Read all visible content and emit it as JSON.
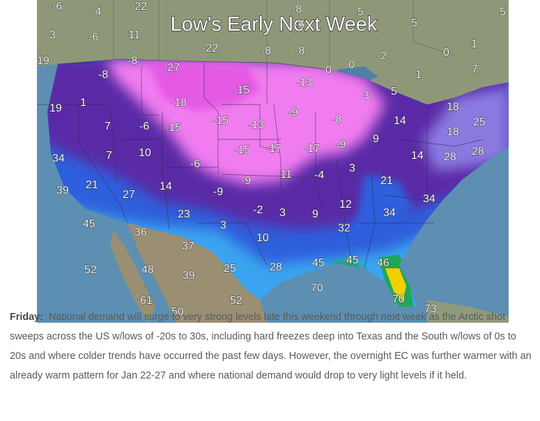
{
  "map": {
    "title": "Low's Early Next Week",
    "labels": [
      {
        "t": "-6"
      },
      {
        "t": "-4"
      },
      {
        "t": "-22"
      },
      {
        "t": "-8"
      },
      {
        "t": "5"
      },
      {
        "t": "5"
      },
      {
        "t": "3"
      },
      {
        "t": "-6"
      },
      {
        "t": "-11"
      },
      {
        "t": "-6"
      },
      {
        "t": "5"
      },
      {
        "t": "19"
      },
      {
        "t": "-8"
      },
      {
        "t": "-22"
      },
      {
        "t": "-8"
      },
      {
        "t": "-8"
      },
      {
        "t": "-2"
      },
      {
        "t": "0"
      },
      {
        "t": "1"
      },
      {
        "t": "-27"
      },
      {
        "t": "0"
      },
      {
        "t": "0"
      },
      {
        "t": "1"
      },
      {
        "t": "7"
      },
      {
        "t": "-8"
      },
      {
        "t": "-13"
      },
      {
        "t": "-15"
      },
      {
        "t": "5"
      },
      {
        "t": "19"
      },
      {
        "t": "1"
      },
      {
        "t": "-18"
      },
      {
        "t": "3"
      },
      {
        "t": "18"
      },
      {
        "t": "-9"
      },
      {
        "t": "-8"
      },
      {
        "t": "14"
      },
      {
        "t": "25"
      },
      {
        "t": "7"
      },
      {
        "t": "-6"
      },
      {
        "t": "-15"
      },
      {
        "t": "-15"
      },
      {
        "t": "-13"
      },
      {
        "t": "18"
      },
      {
        "t": "9"
      },
      {
        "t": "-9"
      },
      {
        "t": "-17"
      },
      {
        "t": "-17"
      },
      {
        "t": "-15"
      },
      {
        "t": "34"
      },
      {
        "t": "7"
      },
      {
        "t": "10"
      },
      {
        "t": "14"
      },
      {
        "t": "28"
      },
      {
        "t": "28"
      },
      {
        "t": "-6"
      },
      {
        "t": "3"
      },
      {
        "t": "-11"
      },
      {
        "t": "-4"
      },
      {
        "t": "-9"
      },
      {
        "t": "21"
      },
      {
        "t": "21"
      },
      {
        "t": "14"
      },
      {
        "t": "-9"
      },
      {
        "t": "39"
      },
      {
        "t": "27"
      },
      {
        "t": "34"
      },
      {
        "t": "12"
      },
      {
        "t": "23"
      },
      {
        "t": "-2"
      },
      {
        "t": "3"
      },
      {
        "t": "9"
      },
      {
        "t": "34"
      },
      {
        "t": "45"
      },
      {
        "t": "3"
      },
      {
        "t": "36"
      },
      {
        "t": "32"
      },
      {
        "t": "10"
      },
      {
        "t": "37"
      },
      {
        "t": "52"
      },
      {
        "t": "48"
      },
      {
        "t": "39"
      },
      {
        "t": "25"
      },
      {
        "t": "28"
      },
      {
        "t": "45"
      },
      {
        "t": "45"
      },
      {
        "t": "46"
      },
      {
        "t": "70"
      },
      {
        "t": "61"
      },
      {
        "t": "52"
      },
      {
        "t": "70"
      },
      {
        "t": "50"
      },
      {
        "t": "73"
      }
    ],
    "colors": {
      "ocean": "#5d8fb2",
      "land_mexico": "#9a8f72",
      "land_canada": "#8e9878",
      "very_cold": "#f07cf0",
      "cold": "#5a2ca6",
      "cool": "#2f5fdc",
      "mild": "#3aa4f0",
      "warm": "#1ea85a",
      "hot": "#f2d000"
    }
  },
  "caption": {
    "day": "Friday:",
    "text": "National demand will surge to very strong levels late this weekend through next week as the Arctic shot sweeps across the US w/lows of -20s to 30s, including hard freezes deep into Texas and the South w/lows of 0s to 20s and where colder trends have occurred the past few days. However, the overnight EC was further warmer with an already warm pattern for Jan 22-27 and where national demand would drop to very light levels if it held."
  }
}
